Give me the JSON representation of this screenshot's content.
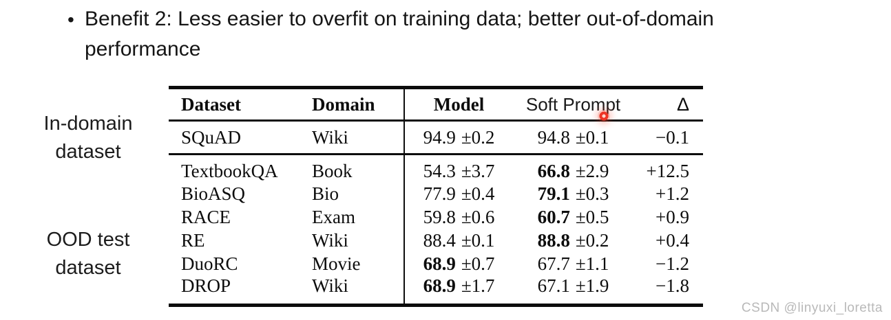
{
  "colors": {
    "laser_dot": "#ee3526",
    "watermark": "#b9b9b9",
    "rule": "#0c0c0c"
  },
  "bullet": {
    "glyph": "•",
    "text": "Benefit 2: Less easier to overfit on training data; better out-of-domain performance"
  },
  "side_labels": {
    "in_domain": {
      "line1": "In-domain",
      "line2": "dataset"
    },
    "ood": {
      "line1": "OOD test",
      "line2": "dataset"
    }
  },
  "table": {
    "headers": {
      "dataset": "Dataset",
      "domain": "Domain",
      "model": "Model",
      "soft_prompt": "Soft Prompt",
      "delta": "Δ"
    },
    "rows": [
      {
        "section": "in-domain",
        "dataset": "SQuAD",
        "domain": "Wiki",
        "model": "94.9",
        "model_err": "±0.2",
        "model_bold": false,
        "soft": "94.8",
        "soft_err": "±0.1",
        "soft_bold": false,
        "delta": "−0.1"
      },
      {
        "section": "ood",
        "dataset": "TextbookQA",
        "domain": "Book",
        "model": "54.3",
        "model_err": "±3.7",
        "model_bold": false,
        "soft": "66.8",
        "soft_err": "±2.9",
        "soft_bold": true,
        "delta": "+12.5"
      },
      {
        "section": "ood",
        "dataset": "BioASQ",
        "domain": "Bio",
        "model": "77.9",
        "model_err": "±0.4",
        "model_bold": false,
        "soft": "79.1",
        "soft_err": "±0.3",
        "soft_bold": true,
        "delta": "+1.2"
      },
      {
        "section": "ood",
        "dataset": "RACE",
        "domain": "Exam",
        "model": "59.8",
        "model_err": "±0.6",
        "model_bold": false,
        "soft": "60.7",
        "soft_err": "±0.5",
        "soft_bold": true,
        "delta": "+0.9"
      },
      {
        "section": "ood",
        "dataset": "RE",
        "domain": "Wiki",
        "model": "88.4",
        "model_err": "±0.1",
        "model_bold": false,
        "soft": "88.8",
        "soft_err": "±0.2",
        "soft_bold": true,
        "delta": "+0.4"
      },
      {
        "section": "ood",
        "dataset": "DuoRC",
        "domain": "Movie",
        "model": "68.9",
        "model_err": "±0.7",
        "model_bold": true,
        "soft": "67.7",
        "soft_err": "±1.1",
        "soft_bold": false,
        "delta": "−1.2"
      },
      {
        "section": "ood",
        "dataset": "DROP",
        "domain": "Wiki",
        "model": "68.9",
        "model_err": "±1.7",
        "model_bold": true,
        "soft": "67.1",
        "soft_err": "±1.9",
        "soft_bold": false,
        "delta": "−1.8"
      }
    ]
  },
  "watermark": {
    "text": "CSDN @linyuxi_loretta"
  }
}
